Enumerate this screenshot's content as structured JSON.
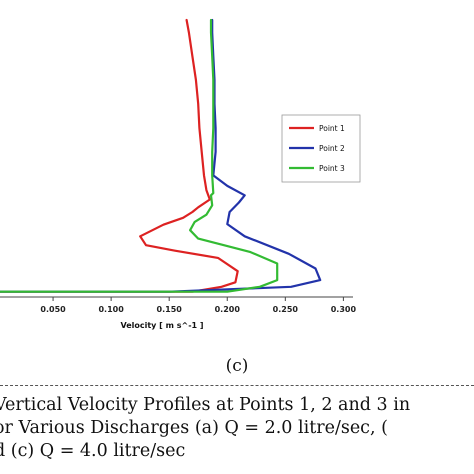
{
  "chart_data": {
    "type": "line",
    "xlabel": "Velocity [ m s^-1 ]",
    "x_ticks": [
      "0.050",
      "0.100",
      "0.150",
      "0.200",
      "0.250",
      "0.300"
    ],
    "x_tick_values": [
      0.05,
      0.1,
      0.15,
      0.2,
      0.25,
      0.3
    ],
    "xlim": [
      0.0,
      0.31
    ],
    "ylim": [
      0,
      1
    ],
    "grid": false,
    "legend_position": "right",
    "series": [
      {
        "name": "Point 1",
        "color": "#dd2222",
        "points": [
          [
            0.0,
            0.019
          ],
          [
            0.17,
            0.019
          ],
          [
            0.195,
            0.037
          ],
          [
            0.207,
            0.053
          ],
          [
            0.209,
            0.093
          ],
          [
            0.192,
            0.141
          ],
          [
            0.155,
            0.167
          ],
          [
            0.13,
            0.187
          ],
          [
            0.125,
            0.219
          ],
          [
            0.145,
            0.261
          ],
          [
            0.162,
            0.286
          ],
          [
            0.17,
            0.307
          ],
          [
            0.175,
            0.324
          ],
          [
            0.185,
            0.352
          ],
          [
            0.182,
            0.386
          ],
          [
            0.18,
            0.439
          ],
          [
            0.178,
            0.524
          ],
          [
            0.176,
            0.61
          ],
          [
            0.175,
            0.697
          ],
          [
            0.173,
            0.784
          ],
          [
            0.17,
            0.869
          ],
          [
            0.167,
            0.955
          ],
          [
            0.165,
            1.0
          ]
        ]
      },
      {
        "name": "Point 2",
        "color": "#2233aa",
        "points": [
          [
            0.0,
            0.019
          ],
          [
            0.15,
            0.019
          ],
          [
            0.255,
            0.037
          ],
          [
            0.28,
            0.061
          ],
          [
            0.276,
            0.103
          ],
          [
            0.253,
            0.156
          ],
          [
            0.215,
            0.219
          ],
          [
            0.2,
            0.263
          ],
          [
            0.202,
            0.307
          ],
          [
            0.21,
            0.341
          ],
          [
            0.215,
            0.367
          ],
          [
            0.2,
            0.401
          ],
          [
            0.188,
            0.439
          ],
          [
            0.19,
            0.524
          ],
          [
            0.19,
            0.61
          ],
          [
            0.189,
            0.697
          ],
          [
            0.189,
            0.784
          ],
          [
            0.188,
            0.869
          ],
          [
            0.187,
            0.955
          ],
          [
            0.187,
            1.0
          ]
        ]
      },
      {
        "name": "Point 3",
        "color": "#33bb33",
        "points": [
          [
            0.0,
            0.019
          ],
          [
            0.2,
            0.019
          ],
          [
            0.228,
            0.037
          ],
          [
            0.243,
            0.061
          ],
          [
            0.243,
            0.121
          ],
          [
            0.22,
            0.162
          ],
          [
            0.195,
            0.189
          ],
          [
            0.175,
            0.211
          ],
          [
            0.168,
            0.241
          ],
          [
            0.172,
            0.271
          ],
          [
            0.182,
            0.297
          ],
          [
            0.187,
            0.331
          ],
          [
            0.186,
            0.367
          ],
          [
            0.188,
            0.375
          ],
          [
            0.187,
            0.439
          ],
          [
            0.187,
            0.524
          ],
          [
            0.188,
            0.61
          ],
          [
            0.188,
            0.697
          ],
          [
            0.188,
            0.784
          ],
          [
            0.187,
            0.869
          ],
          [
            0.186,
            0.955
          ],
          [
            0.186,
            1.0
          ]
        ]
      }
    ]
  },
  "panel_label": "(c)",
  "caption": {
    "line1": "Vertical Velocity Profiles at Points 1, 2 and 3 in",
    "line2": "or Various Discharges (a) Q = 2.0 litre/sec, (",
    "line3": "d (c) Q = 4.0 litre/sec"
  }
}
